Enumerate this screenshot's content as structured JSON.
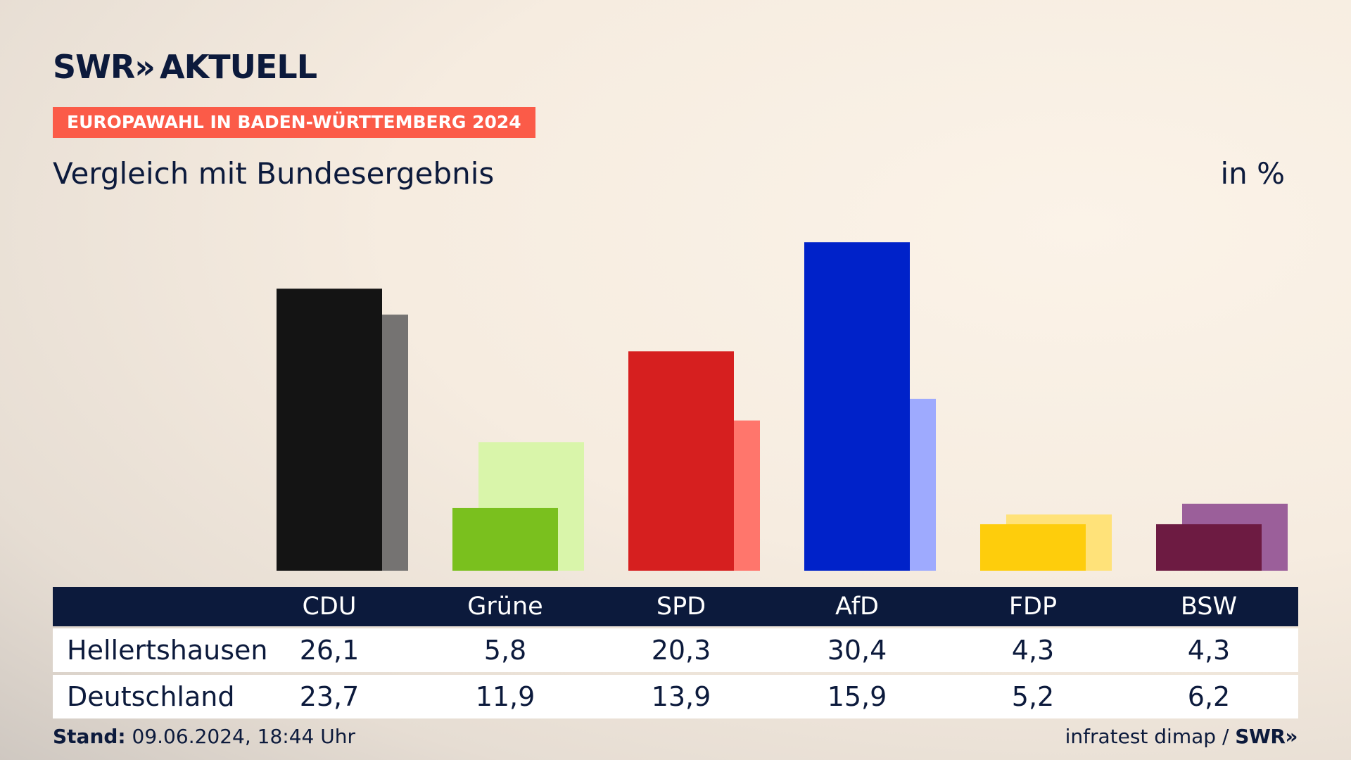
{
  "brand": {
    "logo_text": "SWR",
    "logo_chevrons": "»",
    "logo_suffix": "AKTUELL"
  },
  "badge": "EUROPAWAHL IN BADEN-WÜRTTEMBERG 2024",
  "subtitle": "Vergleich mit Bundesergebnis",
  "unit": "in %",
  "footer": {
    "stand_label": "Stand:",
    "stand_value": "09.06.2024, 18:44 Uhr",
    "source": "infratest dimap /",
    "source_brand": "SWR»"
  },
  "chart_data": {
    "type": "bar",
    "categories": [
      "CDU",
      "Grüne",
      "SPD",
      "AfD",
      "FDP",
      "BSW"
    ],
    "series": [
      {
        "name": "Hellertshausen",
        "values": [
          26.1,
          5.8,
          20.3,
          30.4,
          4.3,
          4.3
        ]
      },
      {
        "name": "Deutschland",
        "values": [
          23.7,
          11.9,
          13.9,
          15.9,
          5.2,
          6.2
        ]
      }
    ],
    "colors_local": [
      "#141414",
      "#7ac01e",
      "#d61f1f",
      "#0022c9",
      "#fecd0c",
      "#6d1b42"
    ],
    "colors_national": [
      "#757372",
      "#d9f5aa",
      "#ff766c",
      "#9eaafe",
      "#ffe279",
      "#9b5f9a"
    ],
    "ylim": [
      0,
      31
    ],
    "grid": false,
    "legend": "table-below"
  }
}
